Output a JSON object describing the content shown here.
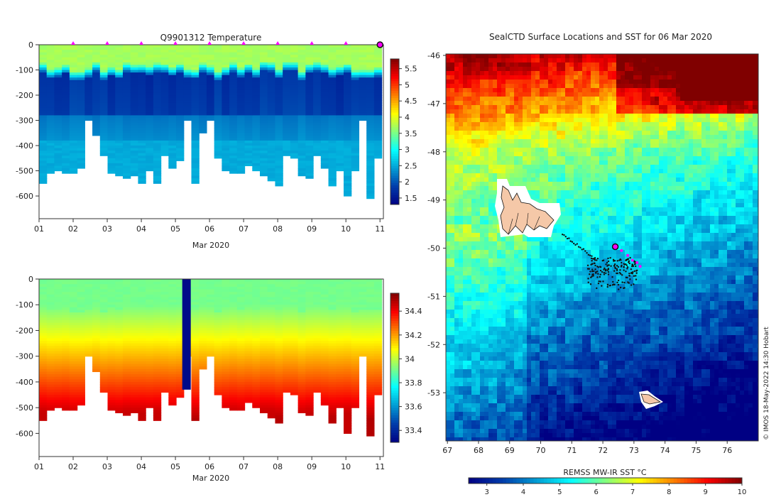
{
  "chart_data": [
    {
      "type": "heatmap",
      "title": "Q9901312  Temperature",
      "xlabel": "Mar 2020",
      "ylabel": "",
      "x_tick_labels": [
        "01",
        "02",
        "03",
        "04",
        "05",
        "06",
        "07",
        "08",
        "09",
        "10",
        "11"
      ],
      "y_tick_labels": [
        "0",
        "-100",
        "-200",
        "-300",
        "-400",
        "-500",
        "-600"
      ],
      "xlim": [
        1,
        11.1
      ],
      "ylim": [
        -690,
        0
      ],
      "colorbar_ticks": [
        "1.5",
        "2",
        "2.5",
        "3",
        "3.5",
        "4",
        "4.5",
        "5",
        "5.5"
      ],
      "colorbar_range": [
        1.3,
        5.8
      ],
      "marker_days": [
        2,
        3,
        4,
        5,
        6,
        7,
        8,
        9,
        10
      ],
      "profile_max_depth": [
        550,
        505,
        500,
        505,
        510,
        485,
        300,
        360,
        440,
        510,
        520,
        530,
        520,
        545,
        500,
        545,
        440,
        490,
        460,
        300,
        550,
        350,
        300,
        450,
        500,
        510,
        505,
        480,
        500,
        520,
        540,
        560,
        440,
        450,
        520,
        530,
        440,
        490,
        560,
        500,
        600,
        500,
        300,
        610,
        450
      ]
    },
    {
      "type": "heatmap",
      "title": "",
      "xlabel": "Mar 2020",
      "ylabel": "",
      "x_tick_labels": [
        "01",
        "02",
        "03",
        "04",
        "05",
        "06",
        "07",
        "08",
        "09",
        "10",
        "11"
      ],
      "y_tick_labels": [
        "0",
        "-100",
        "-200",
        "-300",
        "-400",
        "-500",
        "-600"
      ],
      "xlim": [
        1,
        11.1
      ],
      "ylim": [
        -690,
        0
      ],
      "colorbar_ticks": [
        "33.4",
        "33.6",
        "33.8",
        "34",
        "34.2",
        "34.4"
      ],
      "colorbar_range": [
        33.3,
        34.55
      ],
      "gap_day_range": [
        5.2,
        5.45
      ]
    },
    {
      "type": "heatmap",
      "title": "SealCTD Surface Locations and SST for 06 Mar 2020",
      "xlabel": "REMSS MW-IR SST °C",
      "ylabel": "",
      "x_tick_labels": [
        "67",
        "68",
        "69",
        "70",
        "71",
        "72",
        "73",
        "74",
        "75",
        "76"
      ],
      "y_tick_labels": [
        "-46",
        "-47",
        "-48",
        "-49",
        "-50",
        "-51",
        "-52",
        "-53"
      ],
      "xlim": [
        66.95,
        77.0
      ],
      "ylim": [
        -54.0,
        -45.97
      ],
      "colorbar_ticks": [
        "3",
        "4",
        "5",
        "6",
        "7",
        "8",
        "9",
        "10"
      ],
      "colorbar_range": [
        2.5,
        10
      ],
      "current_position": [
        72.4,
        -49.97
      ],
      "recent_track": [
        [
          72.4,
          -49.97
        ],
        [
          72.6,
          -50.05
        ],
        [
          72.8,
          -50.15
        ],
        [
          72.95,
          -50.25
        ],
        [
          73.1,
          -50.3
        ],
        [
          73.2,
          -50.38
        ]
      ],
      "credit": "© IMOS 18-May-2022 14:30 Hobart"
    }
  ]
}
